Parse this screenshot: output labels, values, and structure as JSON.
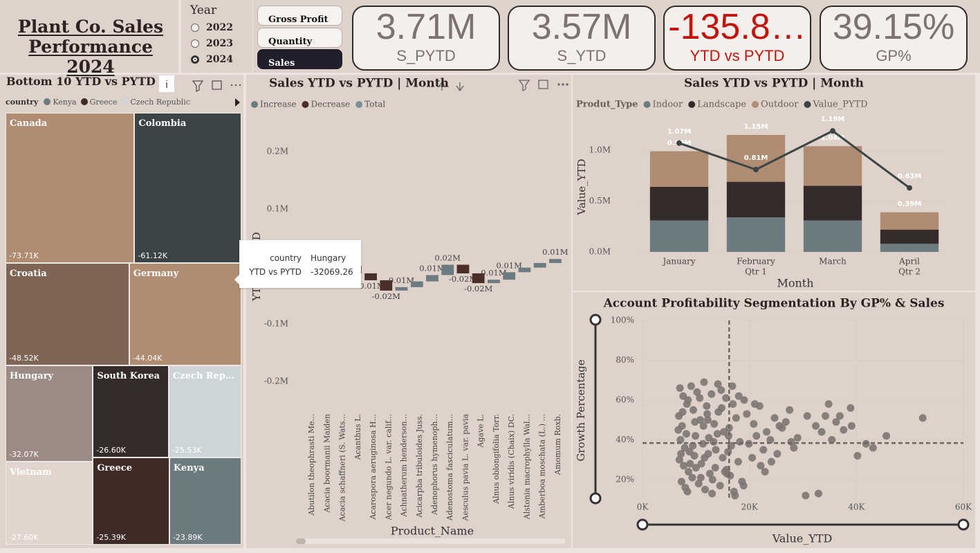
{
  "header": {
    "title": "Plant Co. Sales Performance 2024"
  },
  "year_slicer": {
    "title": "Year",
    "options": [
      "2022",
      "2023",
      "2024"
    ],
    "selected": "2024"
  },
  "buttons": {
    "items": [
      "Gross Profit",
      "Quantity",
      "Sales"
    ],
    "active": "Sales"
  },
  "cards": [
    {
      "value": "3.71M",
      "label": "S_PYTD",
      "color": "#7a7370"
    },
    {
      "value": "3.57M",
      "label": "S_YTD",
      "color": "#7a7370"
    },
    {
      "value": "-135.8…",
      "label": "YTD vs PYTD",
      "color": "#c0160f"
    },
    {
      "value": "39.15%",
      "label": "GP%",
      "color": "#7a7370"
    }
  ],
  "tooltip": {
    "rows": [
      {
        "label": "country",
        "value": "Hungary"
      },
      {
        "label": "YTD vs PYTD",
        "value": "-32069.26"
      }
    ]
  },
  "chart_data": [
    {
      "type": "treemap",
      "title": "Bottom 10 YTD vs PYTD | country",
      "legend_title": "country",
      "categories": [
        "Canada",
        "Colombia",
        "Croatia",
        "Germany",
        "Hungary",
        "Vietnam",
        "South Korea",
        "Czech Republic",
        "Greece",
        "Kenya"
      ],
      "values": [
        -73710,
        -61120,
        -48520,
        -44040,
        -32070,
        -27600,
        -26600,
        -25530,
        -25390,
        -23890
      ],
      "value_labels": [
        "-73.71K",
        "-61.12K",
        "-48.52K",
        "-44.04K",
        "-32.07K",
        "-27.60K",
        "-26.60K",
        "-25.53K",
        "-25.39K",
        "-23.89K"
      ],
      "colors": [
        "#b08c72",
        "#3d4446",
        "#7e6555",
        "#b08c72",
        "#9c8b84",
        "#e2d5cd",
        "#352b2b",
        "#cdd5d6",
        "#3e2b26",
        "#6b7b80"
      ]
    },
    {
      "type": "waterfall",
      "title": "Sales YTD vs PYTD | Month",
      "x_label": "Product_Name",
      "y_label": "YTD vs PYTD",
      "legend_items": [
        {
          "name": "Increase",
          "color": "#6b7b80"
        },
        {
          "name": "Decrease",
          "color": "#4a2e28"
        },
        {
          "name": "Total",
          "color": "#7f8e93"
        }
      ],
      "categories": [
        "Abutilon theophrasti Me...",
        "Acacia boormanii Maiden",
        "Acacia schaffneri (S. Wats...",
        "Acanthus L.",
        "Acarospora aeruginosa H...",
        "Acer negundo L. var. calif...",
        "Achnatherum henderson...",
        "Acicarpha tribuloides Juss.",
        "Adenophorus hymenoph...",
        "Adenostoma fasciculatum...",
        "Aesculus pavia L. var. pavia",
        "Agave L.",
        "Alnus oblongifolia Torr.",
        "Alnus viridis (Chaix) DC.",
        "Alstonia macrophylla Wal...",
        "Amberboa moschata (L.) ...",
        "Amomum Roxb."
      ],
      "values": [
        8000,
        -12000,
        5000,
        -13000,
        -12000,
        -18000,
        6000,
        10000,
        11000,
        18000,
        -15000,
        -17000,
        6000,
        13000,
        8000,
        8000,
        7000
      ],
      "value_labels": [
        null,
        null,
        null,
        null,
        "-0.01M",
        "-0.02M",
        "0.01M",
        null,
        "0.01M",
        "0.02M",
        "-0.02M",
        "-0.02M",
        "0.01M",
        "0.01M",
        null,
        null,
        "0.01M"
      ],
      "ylim": [
        -235000,
        235000
      ],
      "yticks": [
        {
          "value": -200000,
          "label": "-0.2M"
        },
        {
          "value": -100000,
          "label": "-0.1M"
        },
        {
          "value": 100000,
          "label": "0.1M"
        },
        {
          "value": 200000,
          "label": "0.2M"
        }
      ]
    },
    {
      "type": "combo",
      "title": "Sales YTD vs PYTD | Month",
      "x_label": "Month",
      "y_label": "Value_YTD",
      "legend_title": "Produt_Type",
      "categories": [
        "January",
        "February",
        "March",
        "April"
      ],
      "sublabels": [
        null,
        "Qtr 1",
        null,
        "Qtr 2"
      ],
      "series": [
        {
          "name": "Indoor",
          "color": "#6b7b80",
          "kind": "bar",
          "values": [
            310000,
            340000,
            310000,
            80000
          ]
        },
        {
          "name": "Landscape",
          "color": "#352b2b",
          "kind": "bar",
          "values": [
            330000,
            350000,
            340000,
            140000
          ]
        },
        {
          "name": "Outdoor",
          "color": "#b08c72",
          "kind": "bar",
          "values": [
            350000,
            460000,
            390000,
            170000
          ]
        },
        {
          "name": "Value_PYTD",
          "color": "#3d4446",
          "kind": "line",
          "values": [
            1070000,
            810000,
            1190000,
            630000
          ],
          "value_labels": [
            "1.07M",
            "0.81M",
            "1.19M",
            "0.63M"
          ]
        }
      ],
      "total_labels": [
        "0.99M",
        "1.15M",
        "1.04M",
        "0.39M"
      ],
      "ylim": [
        0,
        1300000
      ],
      "yticks": [
        {
          "value": 0,
          "label": "0.0M"
        },
        {
          "value": 500000,
          "label": "0.5M"
        },
        {
          "value": 1000000,
          "label": "1.0M"
        }
      ],
      "grid": true
    },
    {
      "type": "scatter",
      "title": "Account Profitability Segmentation By GP% & Sales",
      "x_label": "Value_YTD",
      "y_label": "Growth Percentage",
      "color": "#7d7672",
      "x": [
        7000,
        7600,
        8300,
        9100,
        10200,
        11500,
        12900,
        14100,
        15600,
        16800,
        6800,
        7400,
        8200,
        9500,
        10800,
        12100,
        13400,
        14800,
        16200,
        17500,
        7100,
        7900,
        8800,
        9900,
        11300,
        12400,
        13700,
        15200,
        16600,
        18200,
        6900,
        7700,
        8600,
        9700,
        11000,
        12300,
        13600,
        15000,
        16400,
        17900,
        7300,
        8000,
        9300,
        10500,
        11700,
        13100,
        14500,
        15800,
        17100,
        18600,
        19500,
        20800,
        21900,
        23200,
        24700,
        26100,
        27500,
        29000,
        30800,
        32400,
        19900,
        21300,
        22600,
        23900,
        25200,
        26800,
        28300,
        20500,
        22100,
        24100,
        33500,
        34800,
        35400,
        36900,
        37600,
        39100,
        40200,
        41800,
        43100,
        45600,
        6700,
        8500,
        10000,
        12000,
        14000,
        16000,
        18000,
        9800,
        11600,
        13300,
        7500,
        9400,
        10700,
        12600,
        14700,
        16900,
        8900,
        11400,
        15400,
        52400,
        30500,
        32900,
        34200,
        36200,
        38900,
        19000,
        22900,
        25600,
        27800,
        21000,
        17300,
        18900,
        15700,
        13000,
        10900,
        8400,
        7200,
        12200,
        14200,
        16100
      ],
      "values": [
        66,
        62,
        58,
        67,
        64,
        69,
        63,
        68,
        61,
        67,
        52,
        47,
        43,
        55,
        50,
        53,
        48,
        56,
        46,
        51,
        40,
        36,
        34,
        42,
        38,
        41,
        35,
        44,
        37,
        39,
        30,
        27,
        24,
        32,
        28,
        33,
        26,
        31,
        22,
        29,
        19,
        16,
        21,
        18,
        15,
        20,
        17,
        23,
        14,
        19,
        53,
        48,
        57,
        44,
        51,
        46,
        55,
        41,
        52,
        47,
        38,
        42,
        35,
        40,
        33,
        49,
        36,
        31,
        27,
        29,
        44,
        58,
        40,
        52,
        45,
        47,
        32,
        38,
        36,
        42,
        45,
        60,
        26,
        57,
        43,
        34,
        62,
        49,
        31,
        39,
        54,
        37,
        61,
        23,
        65,
        58,
        28,
        47,
        24,
        51,
        12,
        13,
        52,
        49,
        56,
        60,
        24,
        47,
        39,
        58,
        12,
        17,
        25,
        13,
        21,
        14,
        33,
        50,
        54,
        42
      ],
      "x_reference": 16200,
      "y_reference": 38.4,
      "xlim": [
        0,
        60000
      ],
      "ylim": [
        10,
        100
      ],
      "xticks": [
        {
          "value": 0,
          "label": "0K"
        },
        {
          "value": 20000,
          "label": "20K"
        },
        {
          "value": 40000,
          "label": "40K"
        },
        {
          "value": 60000,
          "label": "60K"
        }
      ],
      "yticks": [
        {
          "value": 20,
          "label": "20%"
        },
        {
          "value": 40,
          "label": "40%"
        },
        {
          "value": 60,
          "label": "60%"
        },
        {
          "value": 80,
          "label": "80%"
        },
        {
          "value": 100,
          "label": "100%"
        }
      ],
      "grid": true
    }
  ]
}
